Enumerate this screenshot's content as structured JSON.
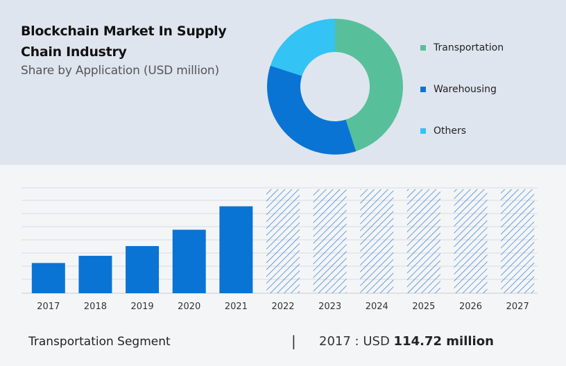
{
  "header": {
    "title": "Blockchain Market In Supply Chain Industry",
    "subtitle": "Share by Application (USD million)"
  },
  "legend": {
    "items": [
      {
        "label": "Transportation",
        "color": "#57c09a"
      },
      {
        "label": "Warehousing",
        "color": "#0a74d4"
      },
      {
        "label": "Others",
        "color": "#33c3f5"
      }
    ]
  },
  "footer": {
    "segment": "Transportation Segment",
    "separator": "|",
    "year_label": "2017 :",
    "currency": "USD",
    "value": "114.72 million"
  },
  "chart_data": [
    {
      "type": "pie",
      "variant": "donut",
      "categories": [
        "Transportation",
        "Warehousing",
        "Others"
      ],
      "values": [
        45,
        35,
        20
      ],
      "colors": [
        "#57c09a",
        "#0a74d4",
        "#33c3f5"
      ]
    },
    {
      "type": "bar",
      "categories": [
        "2017",
        "2018",
        "2019",
        "2020",
        "2021",
        "2022",
        "2023",
        "2024",
        "2025",
        "2026",
        "2027"
      ],
      "values": [
        114.72,
        142,
        179,
        241,
        330,
        null,
        null,
        null,
        null,
        null,
        null
      ],
      "forecast": [
        false,
        false,
        false,
        false,
        false,
        true,
        true,
        true,
        true,
        true,
        true
      ],
      "bar_color": "#0a74d4",
      "forecast_color": "#2d7bd6",
      "ylim": [
        0,
        400
      ],
      "grid": true
    }
  ]
}
